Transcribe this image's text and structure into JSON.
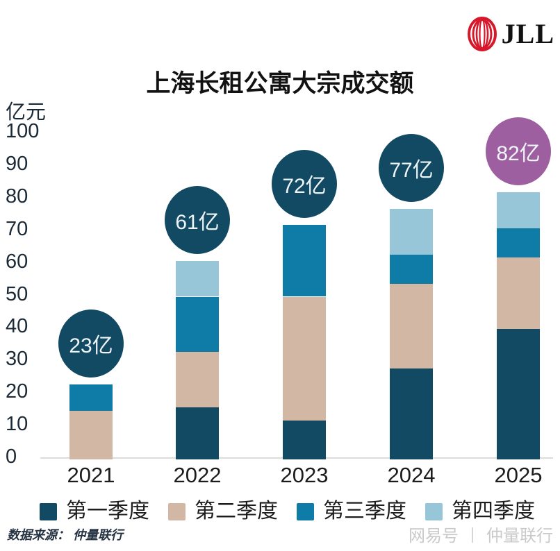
{
  "logo": {
    "brand": "JLL",
    "color": "#d7182a"
  },
  "title": "上海长租公寓大宗成交额",
  "chart_data": {
    "type": "bar",
    "stacked": true,
    "title": "上海长租公寓大宗成交额",
    "ylabel": "亿元",
    "xlabel": "",
    "ylim": [
      0,
      100
    ],
    "ytick_step": 10,
    "grid": false,
    "legend_position": "bottom",
    "categories": [
      "2021",
      "2022",
      "2023",
      "2024",
      "2025"
    ],
    "series": [
      {
        "name": "第一季度",
        "color": "#114a62",
        "values": [
          0,
          16,
          12,
          28,
          40
        ]
      },
      {
        "name": "第二季度",
        "color": "#d2b7a5",
        "values": [
          15,
          17,
          38,
          26,
          22
        ]
      },
      {
        "name": "第三季度",
        "color": "#0e7ca6",
        "values": [
          8,
          17,
          22,
          9,
          9
        ]
      },
      {
        "name": "第四季度",
        "color": "#98c6d9",
        "values": [
          0,
          11,
          0,
          14,
          11
        ]
      }
    ],
    "totals": [
      23,
      61,
      72,
      77,
      82
    ],
    "total_labels": [
      "23亿",
      "61亿",
      "72亿",
      "77亿",
      "82亿"
    ],
    "bubble_colors": [
      "#114a62",
      "#114a62",
      "#114a62",
      "#114a62",
      "#9d5fa0"
    ]
  },
  "source": {
    "label": "数据来源：  仲量联行"
  },
  "watermark": {
    "platform": "网易号",
    "divider": "丨",
    "account": "仲量联行"
  }
}
